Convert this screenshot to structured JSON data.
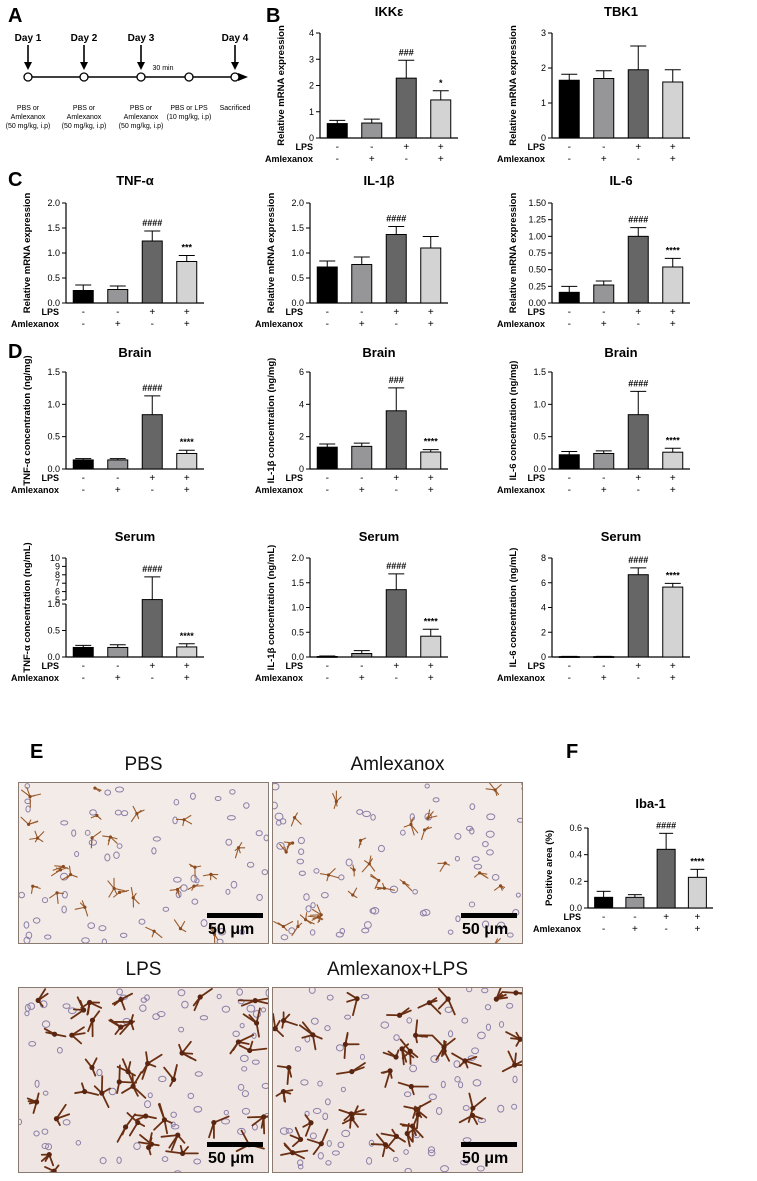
{
  "panel_labels": [
    "A",
    "B",
    "C",
    "D",
    "E",
    "F"
  ],
  "timeline": {
    "days": [
      "Day 1",
      "Day 2",
      "Day 3",
      "Day 4"
    ],
    "interval_label": "30 min",
    "treatments": [
      "PBS or\nAmlexanox\n(50 mg/kg, i.p)",
      "PBS or\nAmlexanox\n(50 mg/kg, i.p)",
      "PBS or\nAmlexanox\n(50 mg/kg, i.p)",
      "PBS or LPS\n(10 mg/kg, i.p)",
      "Sacrificed"
    ]
  },
  "groups": {
    "row1_label": "LPS",
    "row2_label": "Amlexanox",
    "lps": [
      "-",
      "-",
      "+",
      "+"
    ],
    "amlexanox": [
      "-",
      "+",
      "-",
      "+"
    ],
    "bar_colors": [
      "#000000",
      "#969699",
      "#666666",
      "#d3d3d3"
    ]
  },
  "chart_data": [
    {
      "id": "ikke",
      "panel": "B",
      "type": "bar",
      "title": "IKKε",
      "ylabel": "Relative mRNA expression",
      "ylim": [
        0,
        4
      ],
      "yticks": [
        0,
        1,
        2,
        3,
        4
      ],
      "ytick_labels": [
        "0",
        "1",
        "2",
        "3",
        "4"
      ],
      "values": [
        0.55,
        0.57,
        2.28,
        1.45
      ],
      "errors": [
        0.12,
        0.15,
        0.68,
        0.35
      ],
      "annotations": [
        "",
        "",
        "###",
        "*"
      ]
    },
    {
      "id": "tbk1",
      "panel": "B",
      "type": "bar",
      "title": "TBK1",
      "ylabel": "Relative mRNA expression",
      "ylim": [
        0,
        3
      ],
      "yticks": [
        0,
        1,
        2,
        3
      ],
      "ytick_labels": [
        "0",
        "1",
        "2",
        "3"
      ],
      "values": [
        1.65,
        1.7,
        1.95,
        1.6
      ],
      "errors": [
        0.17,
        0.22,
        0.68,
        0.35
      ],
      "annotations": [
        "",
        "",
        "",
        ""
      ]
    },
    {
      "id": "tnfa_mrna",
      "panel": "C",
      "type": "bar",
      "title": "TNF-α",
      "ylabel": "Relative mRNA expression",
      "ylim": [
        0,
        2.0
      ],
      "yticks": [
        0,
        0.5,
        1.0,
        1.5,
        2.0
      ],
      "ytick_labels": [
        "0.0",
        "0.5",
        "1.0",
        "1.5",
        "2.0"
      ],
      "values": [
        0.25,
        0.27,
        1.24,
        0.83
      ],
      "errors": [
        0.11,
        0.07,
        0.2,
        0.12
      ],
      "annotations": [
        "",
        "",
        "####",
        "***"
      ]
    },
    {
      "id": "il1b_mrna",
      "panel": "C",
      "type": "bar",
      "title": "IL-1β",
      "ylabel": "Relative mRNA expression",
      "ylim": [
        0,
        2.0
      ],
      "yticks": [
        0,
        0.5,
        1.0,
        1.5,
        2.0
      ],
      "ytick_labels": [
        "0.0",
        "0.5",
        "1.0",
        "1.5",
        "2.0"
      ],
      "values": [
        0.72,
        0.77,
        1.37,
        1.1
      ],
      "errors": [
        0.12,
        0.15,
        0.16,
        0.23
      ],
      "annotations": [
        "",
        "",
        "####",
        ""
      ]
    },
    {
      "id": "il6_mrna",
      "panel": "C",
      "type": "bar",
      "title": "IL-6",
      "ylabel": "Relative mRNA expression",
      "ylim": [
        0,
        1.5
      ],
      "yticks": [
        0,
        0.25,
        0.5,
        0.75,
        1.0,
        1.25,
        1.5
      ],
      "ytick_labels": [
        "0.00",
        "0.25",
        "0.50",
        "0.75",
        "1.00",
        "1.25",
        "1.50"
      ],
      "values": [
        0.16,
        0.27,
        1.0,
        0.54
      ],
      "errors": [
        0.09,
        0.06,
        0.13,
        0.13
      ],
      "annotations": [
        "",
        "",
        "####",
        "****"
      ]
    },
    {
      "id": "tnfa_brain",
      "panel": "D",
      "type": "bar",
      "title": "Brain",
      "ylabel": "TNF-α concentration (ng/mg)",
      "ylim": [
        0,
        1.5
      ],
      "yticks": [
        0,
        0.5,
        1.0,
        1.5
      ],
      "ytick_labels": [
        "0.0",
        "0.5",
        "1.0",
        "1.5"
      ],
      "values": [
        0.14,
        0.14,
        0.84,
        0.24
      ],
      "errors": [
        0.02,
        0.02,
        0.29,
        0.05
      ],
      "annotations": [
        "",
        "",
        "####",
        "****"
      ]
    },
    {
      "id": "il1b_brain",
      "panel": "D",
      "type": "bar",
      "title": "Brain",
      "ylabel": "IL-1β concentration (ng/mg)",
      "ylim": [
        0,
        6
      ],
      "yticks": [
        0,
        2,
        4,
        6
      ],
      "ytick_labels": [
        "0",
        "2",
        "4",
        "6"
      ],
      "values": [
        1.35,
        1.4,
        3.6,
        1.05
      ],
      "errors": [
        0.2,
        0.2,
        1.42,
        0.15
      ],
      "annotations": [
        "",
        "",
        "###",
        "****"
      ]
    },
    {
      "id": "il6_brain",
      "panel": "D",
      "type": "bar",
      "title": "Brain",
      "ylabel": "IL-6 concentration (ng/mg)",
      "ylim": [
        0,
        1.5
      ],
      "yticks": [
        0,
        0.5,
        1.0,
        1.5
      ],
      "ytick_labels": [
        "0.0",
        "0.5",
        "1.0",
        "1.5"
      ],
      "values": [
        0.22,
        0.24,
        0.84,
        0.26
      ],
      "errors": [
        0.05,
        0.04,
        0.36,
        0.06
      ],
      "annotations": [
        "",
        "",
        "####",
        "****"
      ]
    },
    {
      "id": "tnfa_serum",
      "panel": "D",
      "type": "bar",
      "title": "Serum",
      "ylabel": "TNF-α concentration (ng/mL)",
      "ylim": [
        0,
        10
      ],
      "axis_break": [
        1.0,
        5.0
      ],
      "yticks": [
        0,
        0.5,
        1.0,
        5,
        6,
        7,
        8,
        9,
        10
      ],
      "ytick_labels": [
        "0.0",
        "0.5",
        "1.0",
        "5",
        "6",
        "7",
        "8",
        "9",
        "10"
      ],
      "values": [
        0.18,
        0.18,
        5.05,
        0.19
      ],
      "errors": [
        0.04,
        0.05,
        2.7,
        0.06
      ],
      "annotations": [
        "",
        "",
        "####",
        "****"
      ]
    },
    {
      "id": "il1b_serum",
      "panel": "D",
      "type": "bar",
      "title": "Serum",
      "ylabel": "IL-1β concentration (ng/mL)",
      "ylim": [
        0,
        2.0
      ],
      "yticks": [
        0,
        0.5,
        1.0,
        1.5,
        2.0
      ],
      "ytick_labels": [
        "0.0",
        "0.5",
        "1.0",
        "1.5",
        "2.0"
      ],
      "values": [
        0.01,
        0.07,
        1.36,
        0.42
      ],
      "errors": [
        0.01,
        0.06,
        0.32,
        0.14
      ],
      "annotations": [
        "",
        "",
        "####",
        "****"
      ]
    },
    {
      "id": "il6_serum",
      "panel": "D",
      "type": "bar",
      "title": "Serum",
      "ylabel": "IL-6 concentration (ng/mL)",
      "ylim": [
        0,
        8
      ],
      "yticks": [
        0,
        2,
        4,
        6,
        8
      ],
      "ytick_labels": [
        "0",
        "2",
        "4",
        "6",
        "8"
      ],
      "values": [
        0.03,
        0.03,
        6.65,
        5.65
      ],
      "errors": [
        0.02,
        0.02,
        0.55,
        0.3
      ],
      "annotations": [
        "",
        "",
        "####",
        "****"
      ]
    },
    {
      "id": "iba1",
      "panel": "F",
      "type": "bar",
      "title": "Iba-1",
      "ylabel": "Positive area (%)",
      "ylim": [
        0,
        0.6
      ],
      "yticks": [
        0,
        0.2,
        0.4,
        0.6
      ],
      "ytick_labels": [
        "0.0",
        "0.2",
        "0.4",
        "0.6"
      ],
      "values": [
        0.08,
        0.08,
        0.44,
        0.23
      ],
      "errors": [
        0.045,
        0.02,
        0.12,
        0.06
      ],
      "annotations": [
        "",
        "",
        "####",
        "****"
      ]
    }
  ],
  "micrographs": [
    {
      "title": "PBS",
      "scale": "50 μm",
      "density": "sparse"
    },
    {
      "title": "Amlexanox",
      "scale": "50 μm",
      "density": "sparse"
    },
    {
      "title": "LPS",
      "scale": "50 μm",
      "density": "dense"
    },
    {
      "title": "Amlexanox+LPS",
      "scale": "50 μm",
      "density": "dense"
    }
  ]
}
